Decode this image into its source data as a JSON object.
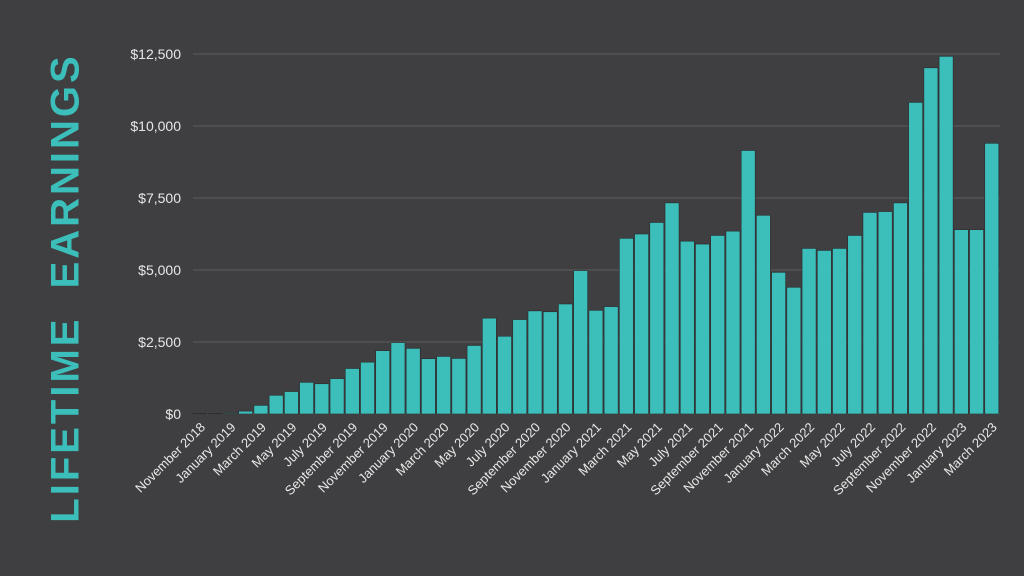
{
  "page": {
    "side_title": "LIFETIME  EARNINGS"
  },
  "colors": {
    "background": "#3f3f41",
    "bar": "#3cbfbb",
    "bar_outline": "#2a2a2c",
    "gridline": "#5c5c5e",
    "axis_text": "#e8e8e8",
    "title": "#3cbfbb"
  },
  "chart_data": {
    "type": "bar",
    "title": "",
    "xlabel": "",
    "ylabel": "",
    "ylim": [
      0,
      12500
    ],
    "y_ticks": [
      0,
      2500,
      5000,
      7500,
      10000,
      12500
    ],
    "y_tick_labels": [
      "$0",
      "$2,500",
      "$5,000",
      "$7,500",
      "$10,000",
      "$12,500"
    ],
    "grid": true,
    "legend": "none",
    "categories": [
      "November 2018",
      "December 2018",
      "January 2019",
      "February 2019",
      "March 2019",
      "April 2019",
      "May 2019",
      "June 2019",
      "July 2019",
      "August 2019",
      "September 2019",
      "October 2019",
      "November 2019",
      "December 2019",
      "January 2020",
      "February 2020",
      "March 2020",
      "April 2020",
      "May 2020",
      "June 2020",
      "July 2020",
      "August 2020",
      "September 2020",
      "October 2020",
      "November 2020",
      "December 2020",
      "January 2021",
      "February 2021",
      "March 2021",
      "April 2021",
      "May 2021",
      "June 2021",
      "July 2021",
      "August 2021",
      "September 2021",
      "October 2021",
      "November 2021",
      "December 2021",
      "January 2022",
      "February 2022",
      "March 2022",
      "April 2022",
      "May 2022",
      "June 2022",
      "July 2022",
      "August 2022",
      "September 2022",
      "October 2022",
      "November 2022",
      "December 2022",
      "January 2023",
      "February 2023",
      "March 2023"
    ],
    "shown_x_labels": [
      "November 2018",
      "January 2019",
      "March 2019",
      "May 2019",
      "July 2019",
      "September 2019",
      "November 2019",
      "January 2020",
      "March 2020",
      "May 2020",
      "July 2020",
      "September 2020",
      "November 2020",
      "January 2021",
      "March 2021",
      "May 2021",
      "July 2021",
      "September 2021",
      "November 2021",
      "January 2022",
      "March 2022",
      "May 2022",
      "July 2022",
      "September 2022",
      "November 2022",
      "January 2023",
      "March 2023"
    ],
    "values": [
      20,
      20,
      30,
      100,
      300,
      650,
      780,
      1100,
      1050,
      1230,
      1580,
      1800,
      2200,
      2480,
      2280,
      1920,
      2000,
      1930,
      2380,
      3330,
      2700,
      3280,
      3580,
      3550,
      3820,
      4980,
      3600,
      3730,
      6100,
      6250,
      6650,
      7330,
      6000,
      5900,
      6200,
      6350,
      9150,
      6900,
      4920,
      4400,
      5750,
      5680,
      5750,
      6200,
      7000,
      7030,
      7330,
      10820,
      12020,
      12420,
      6400,
      6400,
      9400
    ]
  }
}
